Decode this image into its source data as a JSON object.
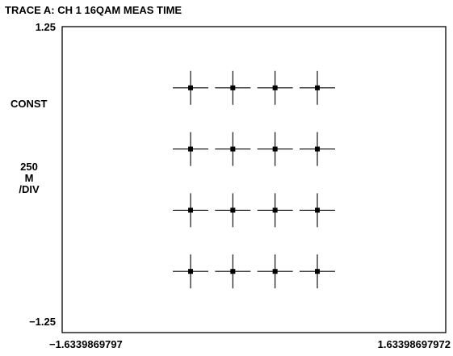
{
  "chart_data": {
    "type": "scatter",
    "title": "TRACE A: CH 1 16QAM MEAS TIME",
    "y_label": "CONST",
    "y_scale": [
      "250",
      "M",
      "/DIV"
    ],
    "x_tick_min": "−1.6339869797",
    "x_tick_max": "1.63398697972",
    "y_tick_max": "1.25",
    "y_tick_min": "−1.25",
    "xlim": [
      -1.6339869797,
      1.63398697972
    ],
    "ylim": [
      -1.25,
      1.25
    ],
    "grid": false,
    "marker": "crosshair",
    "color": "#000000",
    "points": [
      {
        "x": -0.54,
        "y": 0.75
      },
      {
        "x": -0.18,
        "y": 0.75
      },
      {
        "x": 0.18,
        "y": 0.75
      },
      {
        "x": 0.54,
        "y": 0.75
      },
      {
        "x": -0.54,
        "y": 0.25
      },
      {
        "x": -0.18,
        "y": 0.25
      },
      {
        "x": 0.18,
        "y": 0.25
      },
      {
        "x": 0.54,
        "y": 0.25
      },
      {
        "x": -0.54,
        "y": -0.25
      },
      {
        "x": -0.18,
        "y": -0.25
      },
      {
        "x": 0.18,
        "y": -0.25
      },
      {
        "x": 0.54,
        "y": -0.25
      },
      {
        "x": -0.54,
        "y": -0.75
      },
      {
        "x": -0.18,
        "y": -0.75
      },
      {
        "x": 0.18,
        "y": -0.75
      },
      {
        "x": 0.54,
        "y": -0.75
      }
    ]
  }
}
